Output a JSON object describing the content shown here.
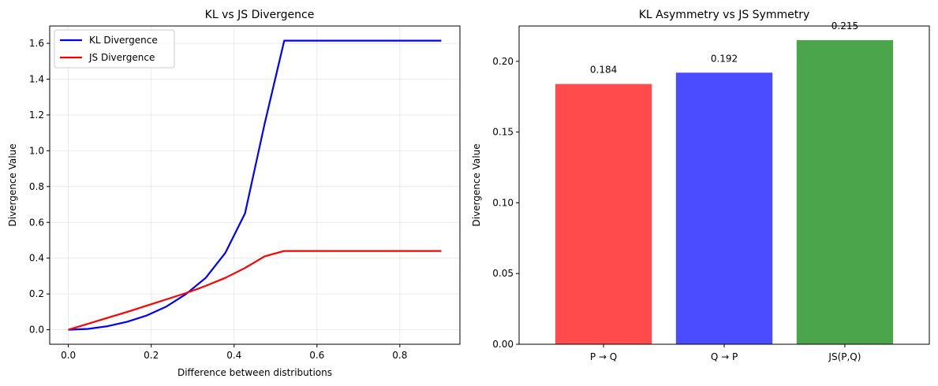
{
  "chart_data": [
    {
      "type": "line",
      "title": "KL vs JS Divergence",
      "xlabel": "Difference between distributions",
      "ylabel": "Divergence Value",
      "xlim": [
        -0.045,
        0.945
      ],
      "ylim": [
        -0.081,
        1.697
      ],
      "xticks": [
        "0.0",
        "0.2",
        "0.4",
        "0.6",
        "0.8"
      ],
      "yticks": [
        "0.0",
        "0.2",
        "0.4",
        "0.6",
        "0.8",
        "1.0",
        "1.2",
        "1.4",
        "1.6"
      ],
      "grid": true,
      "legend": "top-left",
      "series": [
        {
          "name": "KL Divergence",
          "color": "#0000ff",
          "x": [
            0.0,
            0.0474,
            0.0947,
            0.1421,
            0.1895,
            0.2368,
            0.2842,
            0.3316,
            0.3789,
            0.4263,
            0.4737,
            0.5211,
            0.5684,
            0.6158,
            0.6632,
            0.7105,
            0.7579,
            0.8053,
            0.8526,
            0.9
          ],
          "y": [
            0.0,
            0.005,
            0.02,
            0.045,
            0.08,
            0.13,
            0.2,
            0.29,
            0.43,
            0.65,
            1.15,
            1.615,
            1.615,
            1.615,
            1.615,
            1.615,
            1.615,
            1.615,
            1.615,
            1.615
          ]
        },
        {
          "name": "JS Divergence",
          "color": "#ff0000",
          "x": [
            0.0,
            0.0474,
            0.0947,
            0.1421,
            0.1895,
            0.2368,
            0.2842,
            0.3316,
            0.3789,
            0.4263,
            0.4737,
            0.5211,
            0.5684,
            0.6158,
            0.6632,
            0.7105,
            0.7579,
            0.8053,
            0.8526,
            0.9
          ],
          "y": [
            0.0,
            0.033,
            0.067,
            0.1,
            0.135,
            0.17,
            0.205,
            0.245,
            0.29,
            0.345,
            0.41,
            0.44,
            0.44,
            0.44,
            0.44,
            0.44,
            0.44,
            0.44,
            0.44,
            0.44
          ]
        }
      ]
    },
    {
      "type": "bar",
      "title": "KL Asymmetry vs JS Symmetry",
      "xlabel": "",
      "ylabel": "Divergence Value",
      "ylim": [
        0,
        0.225
      ],
      "yticks": [
        "0.00",
        "0.05",
        "0.10",
        "0.15",
        "0.20"
      ],
      "categories": [
        "P → Q",
        "Q → P",
        "JS(P,Q)"
      ],
      "values": [
        0.184,
        0.192,
        0.215
      ],
      "value_labels": [
        "0.184",
        "0.192",
        "0.215"
      ],
      "colors": [
        "#ff4b4b",
        "#4b4bff",
        "#4ba64b"
      ]
    }
  ]
}
